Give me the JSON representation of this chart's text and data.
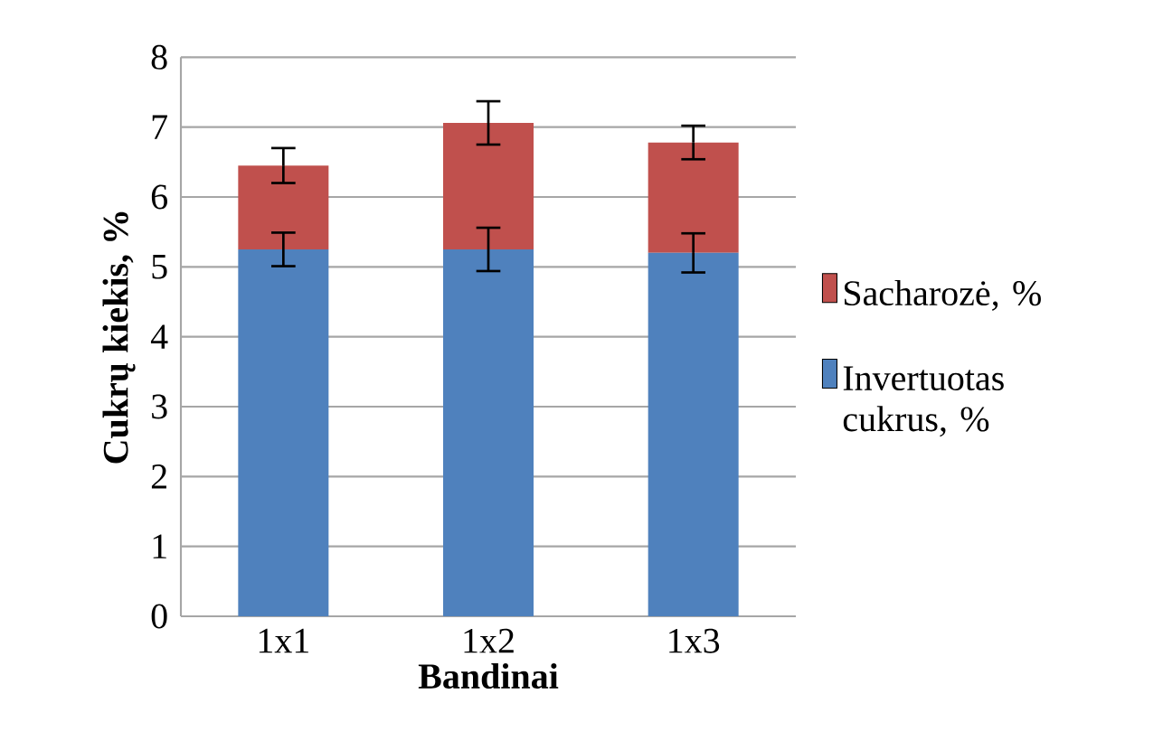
{
  "chart_data": {
    "type": "bar",
    "stacked": true,
    "xlabel": "Bandinai",
    "ylabel": "Cukrų kiekis, %",
    "categories": [
      "1x1",
      "1x2",
      "1x3"
    ],
    "series": [
      {
        "name": "Invertuotas cukrus, %",
        "color": "#4f81bd",
        "values": [
          5.25,
          5.25,
          5.2
        ],
        "errors": [
          0.24,
          0.31,
          0.28
        ]
      },
      {
        "name": "Sacharozė, %",
        "color": "#c0504d",
        "values": [
          1.2,
          1.81,
          1.58
        ],
        "errors": [
          0.25,
          0.31,
          0.24
        ]
      }
    ],
    "ylim": [
      0,
      8
    ],
    "yticks": [
      0,
      1,
      2,
      3,
      4,
      5,
      6,
      7,
      8
    ],
    "grid": "y",
    "legend": "right"
  }
}
